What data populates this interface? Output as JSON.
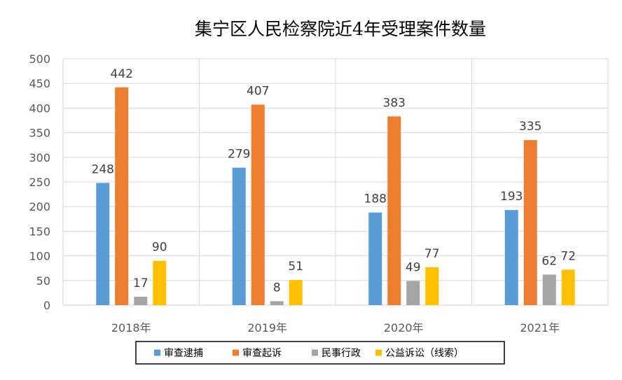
{
  "chart_data": {
    "type": "bar",
    "title": "集宁区人民检察院近4年受理案件数量",
    "categories": [
      "2018年",
      "2019年",
      "2020年",
      "2021年"
    ],
    "series": [
      {
        "name": "审查逮捕",
        "color": "#5b9bd5",
        "values": [
          248,
          279,
          188,
          193
        ]
      },
      {
        "name": "审查起诉",
        "color": "#ed7d31",
        "values": [
          442,
          407,
          383,
          335
        ]
      },
      {
        "name": "民事行政",
        "color": "#a5a5a5",
        "values": [
          17,
          8,
          49,
          62
        ]
      },
      {
        "name": "公益诉讼（线索）",
        "color": "#ffc000",
        "values": [
          90,
          51,
          77,
          72
        ]
      }
    ],
    "yticks": [
      0,
      50,
      100,
      150,
      200,
      250,
      300,
      350,
      400,
      450,
      500
    ],
    "ylim": [
      0,
      500
    ],
    "grid": true,
    "legend_position": "bottom"
  }
}
